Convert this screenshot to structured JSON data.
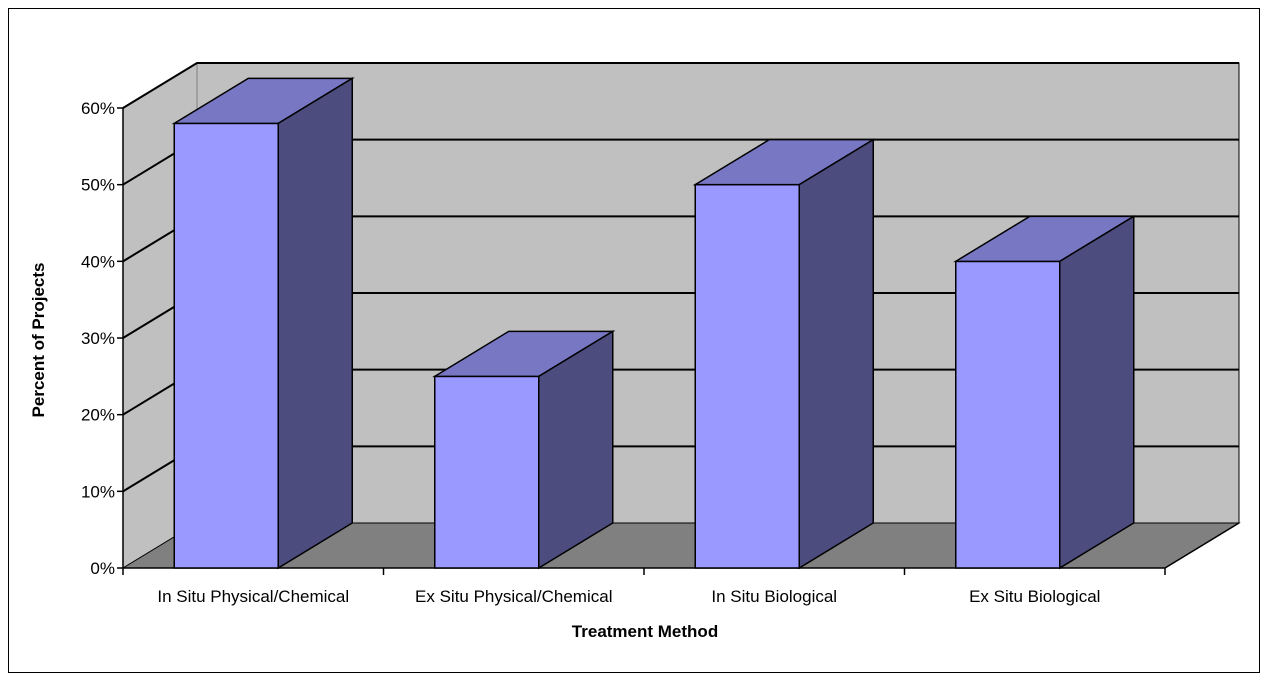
{
  "chart_data": {
    "type": "bar",
    "style": "3d-column",
    "categories": [
      "In Situ Physical/Chemical",
      "Ex Situ Physical/Chemical",
      "In Situ Biological",
      "Ex Situ Biological"
    ],
    "values": [
      58,
      25,
      50,
      40
    ],
    "xlabel": "Treatment Method",
    "ylabel": "Percent of Projects",
    "ylim": [
      0,
      60
    ],
    "yticks": [
      "0%",
      "10%",
      "20%",
      "30%",
      "40%",
      "50%",
      "60%"
    ],
    "grid": true,
    "legend": "none",
    "colors": {
      "bar_front": "#9999ff",
      "bar_top": "#7777c3",
      "bar_side": "#4c4c7f",
      "back_wall": "#c0c0c0",
      "floor": "#808080"
    }
  }
}
